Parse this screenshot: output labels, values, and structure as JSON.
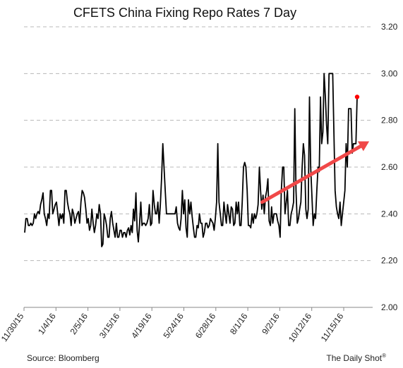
{
  "chart_data": {
    "type": "line",
    "title": "CFETS China Fixing Repo Rates 7 Day",
    "xlabel": "",
    "ylabel": "",
    "ylim": [
      2.0,
      3.2
    ],
    "yticks": [
      "3.20",
      "3.00",
      "2.80",
      "2.60",
      "2.40",
      "2.20",
      "2.00"
    ],
    "ytick_values": [
      3.2,
      3.0,
      2.8,
      2.6,
      2.4,
      2.2,
      2.0
    ],
    "xticks": [
      "11/30/15",
      "1/4/16",
      "2/5/16",
      "3/15/16",
      "4/19/16",
      "5/24/16",
      "6/28/16",
      "8/1/16",
      "9/2/16",
      "10/12/16",
      "11/15/16"
    ],
    "grid": true,
    "source": "Source: Bloomberg",
    "credit": "The Daily Shot",
    "credit_mark": "®",
    "series_color": "#000000",
    "trend_color": "#f04848",
    "last_point_color": "#ff0000",
    "series": [
      {
        "values": [
          2.32,
          2.38,
          2.38,
          2.35,
          2.35,
          2.36,
          2.35,
          2.36,
          2.4,
          2.38,
          2.4,
          2.41,
          2.4,
          2.44,
          2.46,
          2.49,
          2.4,
          2.38,
          2.35,
          2.4,
          2.38,
          2.5,
          2.5,
          2.4,
          2.42,
          2.44,
          2.45,
          2.4,
          2.35,
          2.4,
          2.38,
          2.4,
          2.36,
          2.5,
          2.5,
          2.45,
          2.42,
          2.4,
          2.35,
          2.42,
          2.4,
          2.36,
          2.38,
          2.4,
          2.41,
          2.36,
          2.45,
          2.5,
          2.49,
          2.47,
          2.42,
          2.36,
          2.38,
          2.33,
          2.35,
          2.42,
          2.36,
          2.32,
          2.35,
          2.4,
          2.38,
          2.44,
          2.4,
          2.26,
          2.27,
          2.4,
          2.38,
          2.35,
          2.3,
          2.3,
          2.38,
          2.41,
          2.36,
          2.33,
          2.3,
          2.36,
          2.3,
          2.3,
          2.33,
          2.33,
          2.3,
          2.32,
          2.32,
          2.3,
          2.33,
          2.34,
          2.31,
          2.35,
          2.32,
          2.42,
          2.37,
          2.49,
          2.33,
          2.28,
          2.36,
          2.45,
          2.35,
          2.36,
          2.36,
          2.35,
          2.36,
          2.38,
          2.44,
          2.35,
          2.36,
          2.5,
          2.44,
          2.4,
          2.4,
          2.45,
          2.36,
          2.44,
          2.55,
          2.7,
          2.6,
          2.5,
          2.4,
          2.4,
          2.4,
          2.4,
          2.4,
          2.4,
          2.4,
          2.4,
          2.43,
          2.36,
          2.34,
          2.33,
          2.38,
          2.5,
          2.4,
          2.46,
          2.34,
          2.3,
          2.46,
          2.4,
          2.45,
          2.39,
          2.34,
          2.3,
          2.3,
          2.35,
          2.34,
          2.4,
          2.36,
          2.36,
          2.3,
          2.32,
          2.36,
          2.36,
          2.34,
          2.35,
          2.38,
          2.37,
          2.36,
          2.33,
          2.38,
          2.45,
          2.7,
          2.45,
          2.4,
          2.35,
          2.35,
          2.45,
          2.4,
          2.36,
          2.44,
          2.4,
          2.36,
          2.43,
          2.42,
          2.35,
          2.36,
          2.45,
          2.4,
          2.45,
          2.35,
          2.35,
          2.45,
          2.6,
          2.62,
          2.6,
          2.5,
          2.35,
          2.35,
          2.34,
          2.4,
          2.36,
          2.4,
          2.38,
          2.4,
          2.44,
          2.6,
          2.5,
          2.42,
          2.48,
          2.4,
          2.47,
          2.5,
          2.55,
          2.37,
          2.35,
          2.43,
          2.36,
          2.4,
          2.4,
          2.4,
          2.37,
          2.35,
          2.3,
          2.5,
          2.6,
          2.6,
          2.4,
          2.45,
          2.5,
          2.35,
          2.35,
          2.4,
          2.42,
          2.45,
          2.85,
          2.5,
          2.36,
          2.38,
          2.42,
          2.45,
          2.6,
          2.7,
          2.65,
          2.42,
          2.38,
          2.42,
          2.9,
          2.6,
          2.48,
          2.35,
          2.4,
          2.38,
          2.5,
          2.6,
          2.58,
          2.9,
          2.7,
          2.75,
          3.0,
          2.9,
          2.78,
          2.7,
          3.0,
          3.0,
          3.0,
          3.0,
          2.75,
          2.5,
          2.43,
          2.4,
          2.38,
          2.45,
          2.35,
          2.4,
          2.45,
          2.5,
          2.7,
          2.6,
          2.85,
          2.85,
          2.85,
          2.66,
          2.7,
          2.7,
          2.7,
          2.9
        ]
      }
    ],
    "trend_arrow": {
      "x0_frac": 0.683,
      "y0": 2.45,
      "x1_frac": 0.99,
      "y1": 2.71
    }
  }
}
